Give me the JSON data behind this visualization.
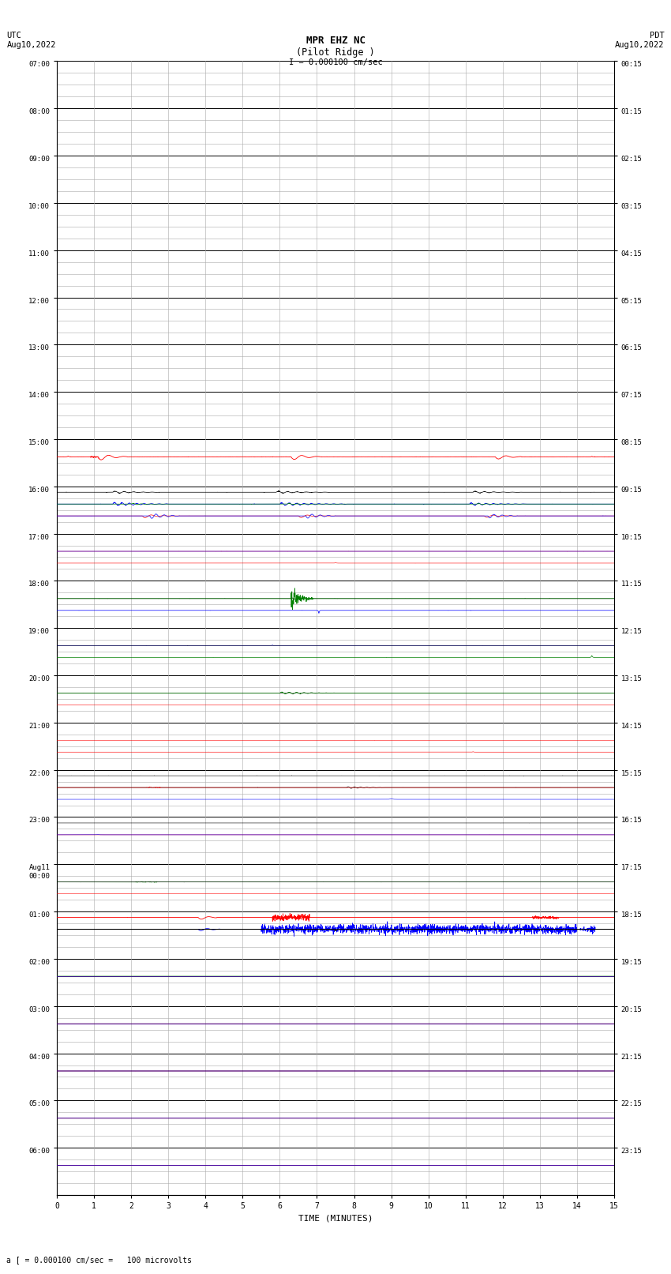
{
  "title_line1": "MPR EHZ NC",
  "title_line2": "(Pilot Ridge )",
  "scale_text": "I = 0.000100 cm/sec",
  "left_label": "UTC\nAug10,2022",
  "right_label": "PDT\nAug10,2022",
  "bottom_label": "a [ = 0.000100 cm/sec =   100 microvolts",
  "xlabel": "TIME (MINUTES)",
  "left_times": [
    "07:00",
    "08:00",
    "09:00",
    "10:00",
    "11:00",
    "12:00",
    "13:00",
    "14:00",
    "15:00",
    "16:00",
    "17:00",
    "18:00",
    "19:00",
    "20:00",
    "21:00",
    "22:00",
    "23:00",
    "Aug11\n00:00",
    "01:00",
    "02:00",
    "03:00",
    "04:00",
    "05:00",
    "06:00"
  ],
  "right_times": [
    "00:15",
    "01:15",
    "02:15",
    "03:15",
    "04:15",
    "05:15",
    "06:15",
    "07:15",
    "08:15",
    "09:15",
    "10:15",
    "11:15",
    "12:15",
    "13:15",
    "14:15",
    "15:15",
    "16:15",
    "17:15",
    "18:15",
    "19:15",
    "20:15",
    "21:15",
    "22:15",
    "23:15"
  ],
  "n_rows": 24,
  "sub_rows": 4,
  "n_minutes": 15,
  "bg_color": "#ffffff",
  "major_grid_color": "#000000",
  "minor_grid_color": "#aaaaaa",
  "figsize": [
    8.5,
    16.13
  ],
  "dpi": 100
}
